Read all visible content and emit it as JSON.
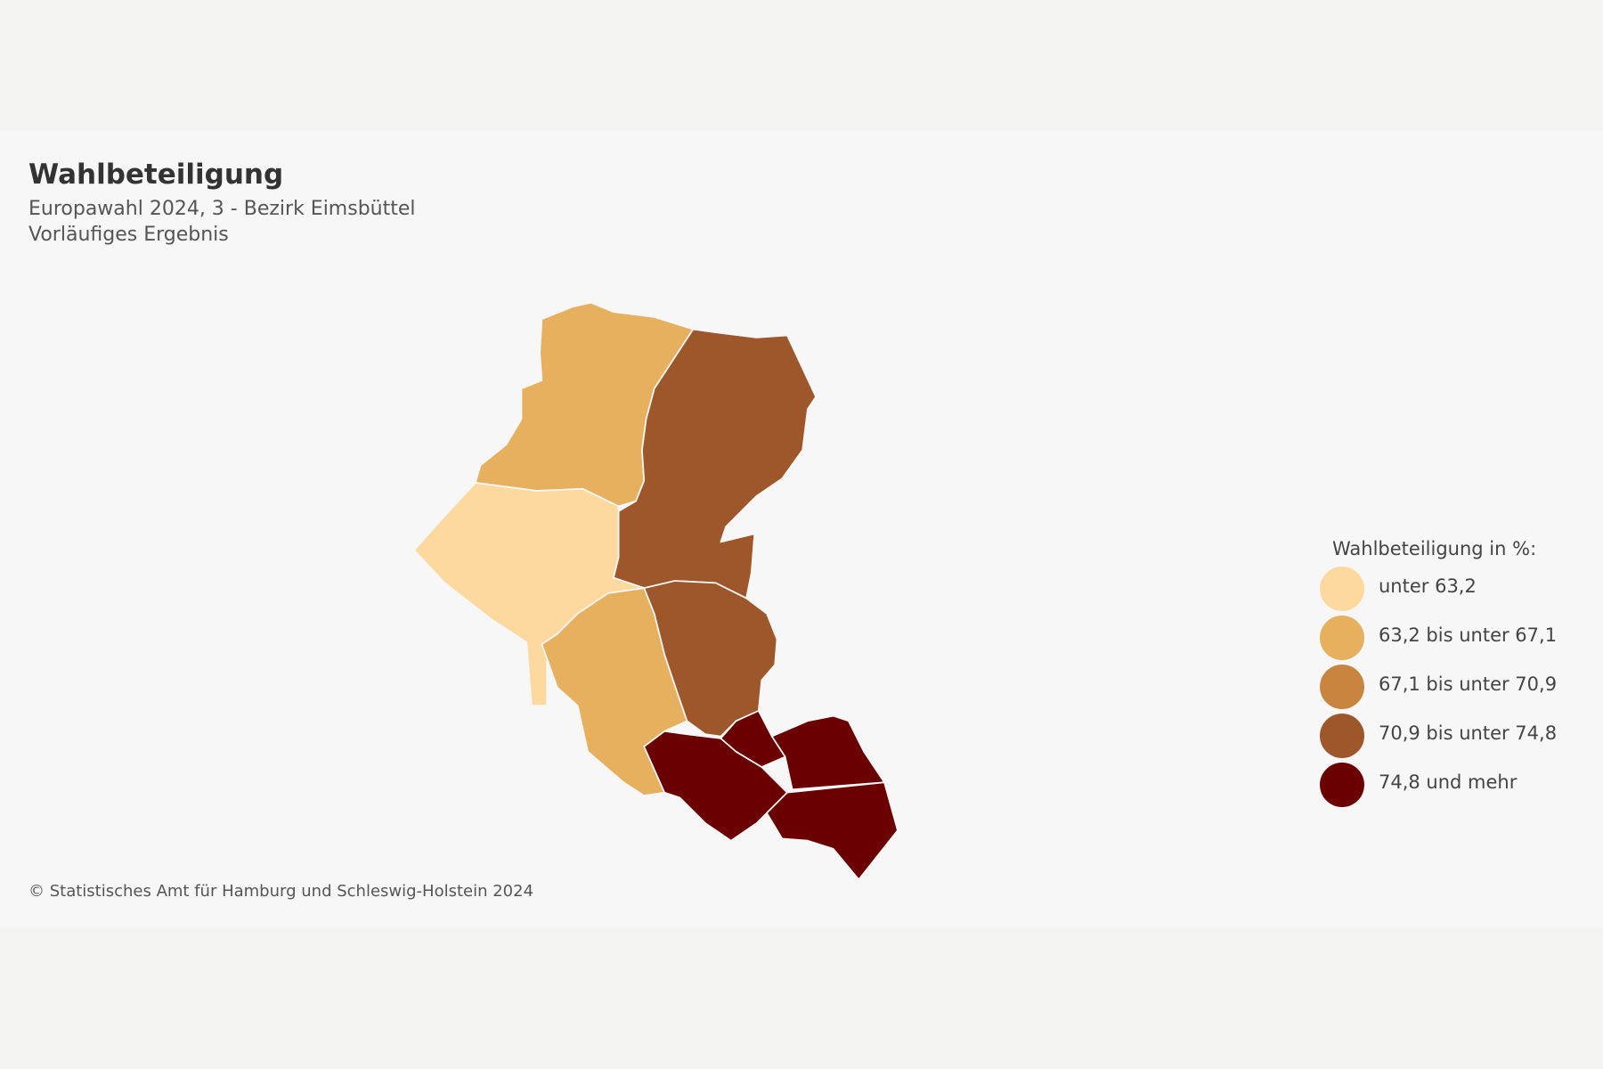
{
  "header": {
    "title": "Wahlbeteiligung",
    "subtitle": "Europawahl 2024, 3 - Bezirk Eimsbüttel",
    "note": "Vorläufiges Ergebnis"
  },
  "legend": {
    "title": "Wahlbeteiligung in %:",
    "items": [
      {
        "label": "unter 63,2",
        "color": "#fdd9a0"
      },
      {
        "label": "63,2 bis unter 67,1",
        "color": "#e6b05e"
      },
      {
        "label": "67,1 bis unter 70,9",
        "color": "#c98540"
      },
      {
        "label": "70,9 bis unter 74,8",
        "color": "#9e572a"
      },
      {
        "label": "74,8 und mehr",
        "color": "#6b0000"
      }
    ]
  },
  "footer": "© Statistisches Amt für Hamburg und Schleswig-Holstein 2024"
}
